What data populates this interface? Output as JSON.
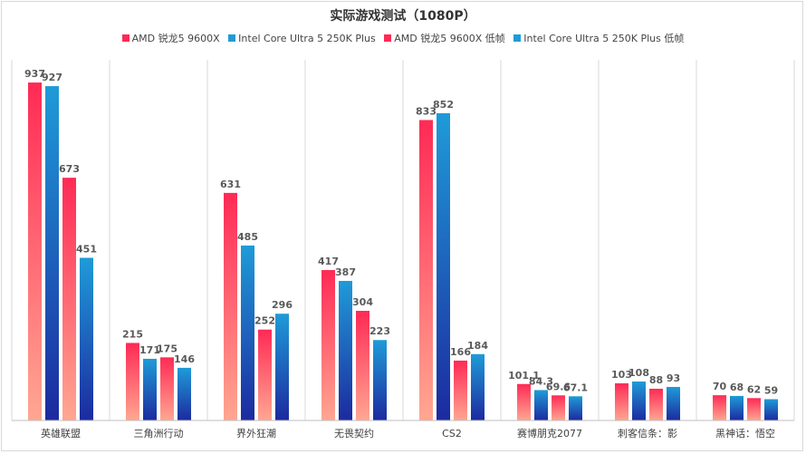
{
  "chart_data": {
    "type": "bar",
    "title": "实际游戏测试（1080P）",
    "categories": [
      "英雄联盟",
      "三角洲行动",
      "界外狂潮",
      "无畏契约",
      "CS2",
      "赛博朋克2077",
      "刺客信条：影",
      "黑神话：悟空"
    ],
    "series": [
      {
        "name": "AMD 锐龙5 9600X",
        "values": [
          937,
          215,
          631,
          417,
          833,
          101.1,
          103,
          70
        ],
        "labels": [
          "937",
          "215",
          "631",
          "417",
          "833",
          "101.1",
          "103",
          "70"
        ],
        "color_top": "#ff2a55",
        "color_bottom": "#ffa792"
      },
      {
        "name": "Intel Core Ultra 5 250K Plus",
        "values": [
          927,
          171,
          485,
          387,
          852,
          84.3,
          108,
          68
        ],
        "labels": [
          "927",
          "171",
          "485",
          "387",
          "852",
          "84.3",
          "108",
          "68"
        ],
        "color_top": "#1f9bd8",
        "color_bottom": "#1c2a9f"
      },
      {
        "name": "AMD 锐龙5 9600X 低帧",
        "values": [
          673,
          175,
          252,
          304,
          166,
          69.6,
          88,
          62
        ],
        "labels": [
          "673",
          "175",
          "252",
          "304",
          "166",
          "69.6",
          "88",
          "62"
        ],
        "color_top": "#ff2a55",
        "color_bottom": "#ffa792"
      },
      {
        "name": "Intel Core Ultra 5 250K Plus 低帧",
        "values": [
          451,
          146,
          296,
          223,
          184,
          67.1,
          93,
          59
        ],
        "labels": [
          "451",
          "146",
          "296",
          "223",
          "184",
          "67.1",
          "93",
          "59"
        ],
        "color_top": "#1f9bd8",
        "color_bottom": "#1c2a9f"
      }
    ],
    "ylim": [
      0,
      1000
    ],
    "grid": false,
    "category_separators": true,
    "legend_position": "top"
  }
}
